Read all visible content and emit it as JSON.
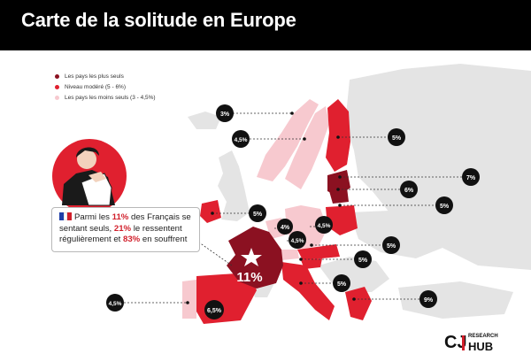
{
  "title": "Carte de la solitude en Europe",
  "legend": [
    {
      "label": "Les pays les plus seuls",
      "color": "#8b1121"
    },
    {
      "label": "Niveau modéré (5 - 6%)",
      "color": "#e0202f"
    },
    {
      "label": "Les pays les moins seuls (3 - 4,5%)",
      "color": "#f7c9cf"
    }
  ],
  "colors": {
    "most": "#8b1121",
    "moderate": "#e0202f",
    "least": "#f7c9cf",
    "neutral": "#e4e4e4",
    "badge": "#111111"
  },
  "badges": [
    {
      "id": "norway",
      "value": "3%"
    },
    {
      "id": "sweden",
      "value": "4,5%"
    },
    {
      "id": "finland",
      "value": "5%"
    },
    {
      "id": "baltics",
      "value": "7%"
    },
    {
      "id": "lithuania",
      "value": "6%"
    },
    {
      "id": "poland",
      "value": "5%"
    },
    {
      "id": "ireland",
      "value": "5%"
    },
    {
      "id": "benelux",
      "value": "4%"
    },
    {
      "id": "germany",
      "value": "4,5%"
    },
    {
      "id": "switzerland",
      "value": "4,5%"
    },
    {
      "id": "austria",
      "value": "5%"
    },
    {
      "id": "slovenia",
      "value": "5%"
    },
    {
      "id": "italy",
      "value": "5%"
    },
    {
      "id": "greece",
      "value": "9%"
    },
    {
      "id": "portugal",
      "value": "4,5%"
    },
    {
      "id": "spain",
      "value": "6,5%"
    }
  ],
  "france": {
    "value": "11%"
  },
  "callout": {
    "parts": [
      {
        "text": "Parmi les ",
        "highlight": false
      },
      {
        "text": "11%",
        "highlight": true
      },
      {
        "text": " des Français se sentant seuls, ",
        "highlight": false
      },
      {
        "text": "21%",
        "highlight": true
      },
      {
        "text": " le ressentent régulièrement et ",
        "highlight": false
      },
      {
        "text": "83%",
        "highlight": true
      },
      {
        "text": " en souffrent",
        "highlight": false
      }
    ],
    "flag_colors": [
      "#1f3fa8",
      "#ffffff",
      "#d11f2b"
    ]
  },
  "brand": {
    "main": "CJ",
    "sub": "RESEARCH",
    "hub": "HUB"
  }
}
